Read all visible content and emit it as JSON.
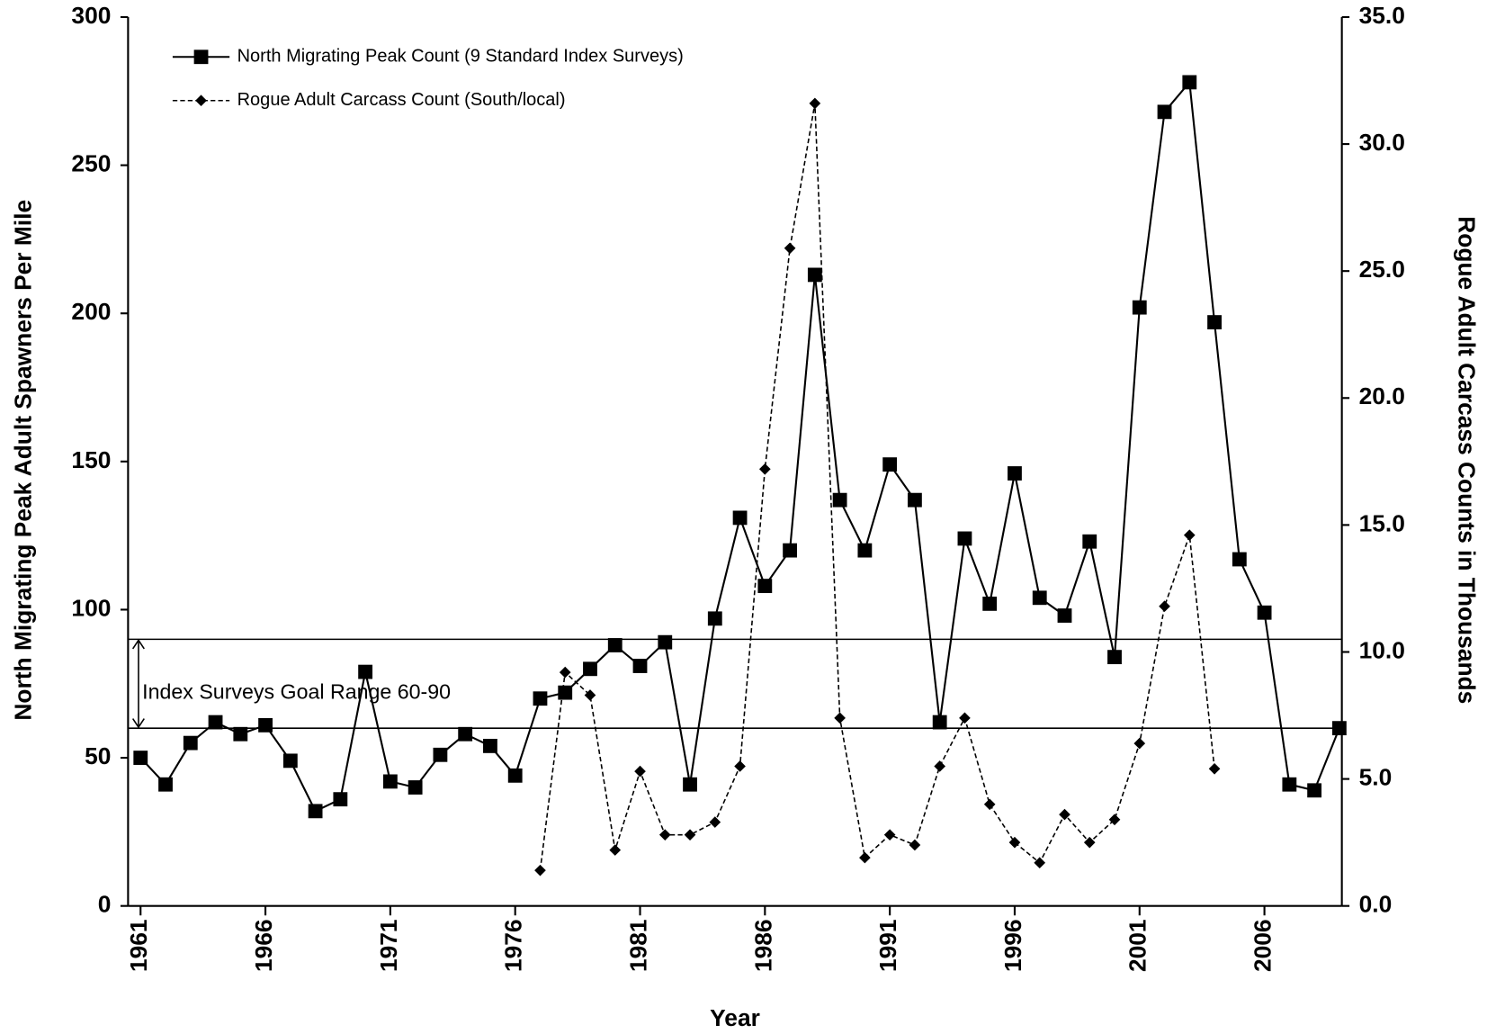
{
  "chart_data": {
    "type": "line",
    "x_label": "Year",
    "y_label": "North Migrating Peak Adult Spawners Per Mile",
    "y2_label": "Rogue Adult Carcass Counts in Thousands",
    "x": [
      1961,
      1962,
      1963,
      1964,
      1965,
      1966,
      1967,
      1968,
      1969,
      1970,
      1971,
      1972,
      1973,
      1974,
      1975,
      1976,
      1977,
      1978,
      1979,
      1980,
      1981,
      1982,
      1983,
      1984,
      1985,
      1986,
      1987,
      1988,
      1989,
      1990,
      1991,
      1992,
      1993,
      1994,
      1995,
      1996,
      1997,
      1998,
      1999,
      2000,
      2001,
      2002,
      2003,
      2004,
      2005,
      2006,
      2007,
      2008,
      2009
    ],
    "xlim": [
      1960.5,
      2009.1
    ],
    "xticks": [
      1961,
      1966,
      1971,
      1976,
      1981,
      1986,
      1991,
      1996,
      2001,
      2006
    ],
    "ylim": [
      0,
      300
    ],
    "yticks": [
      0,
      50,
      100,
      150,
      200,
      250,
      300
    ],
    "y2lim": [
      0,
      35
    ],
    "y2ticks": [
      {
        "value": 0,
        "label": "0.0"
      },
      {
        "value": 5,
        "label": "5.0"
      },
      {
        "value": 10,
        "label": "10.0"
      },
      {
        "value": 15,
        "label": "15.0"
      },
      {
        "value": 20,
        "label": "20.0"
      },
      {
        "value": 25,
        "label": "25.0"
      },
      {
        "value": 30,
        "label": "30.0"
      },
      {
        "value": 35,
        "label": "35.0"
      }
    ],
    "legend": "upper left",
    "series": [
      {
        "name": "North Migrating Peak Count (9 Standard Index Surveys)",
        "color": "#000000",
        "marker": "square",
        "dash": "solid",
        "values": [
          50,
          41,
          55,
          62,
          58,
          61,
          49,
          32,
          36,
          79,
          42,
          40,
          51,
          58,
          54,
          44,
          70,
          72,
          80,
          88,
          81,
          89,
          41,
          97,
          131,
          108,
          120,
          213,
          137,
          120,
          149,
          137,
          62,
          124,
          102,
          146,
          104,
          98,
          123,
          84,
          202,
          268,
          278,
          197,
          117,
          99,
          41,
          39,
          60
        ]
      },
      {
        "name": "Rogue Adult Carcass Count (South/local)",
        "color": "#000000",
        "marker": "diamond",
        "dash": "dashed",
        "axis": "y2",
        "values": [
          null,
          null,
          null,
          null,
          null,
          null,
          null,
          null,
          null,
          null,
          null,
          null,
          null,
          null,
          null,
          null,
          1.4,
          9.2,
          8.3,
          2.2,
          5.3,
          2.8,
          2.8,
          3.3,
          5.5,
          17.2,
          25.9,
          31.6,
          7.4,
          1.9,
          2.8,
          2.4,
          5.5,
          7.4,
          4.0,
          2.5,
          1.7,
          3.6,
          2.5,
          3.4,
          6.4,
          11.8,
          14.6,
          5.4,
          null,
          null,
          null,
          null,
          null
        ]
      }
    ],
    "goal_range": [
      60,
      90
    ],
    "annotation": "Index Surveys Goal Range 60-90"
  }
}
